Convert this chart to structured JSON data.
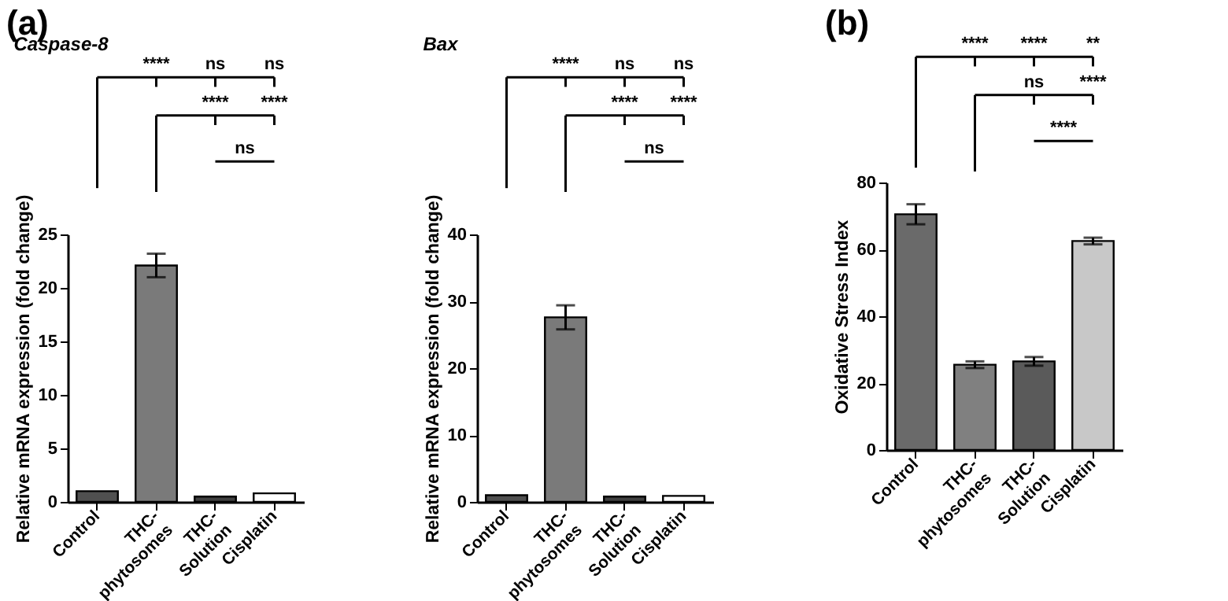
{
  "chart_data": [
    {
      "type": "bar",
      "title": "Caspase-8",
      "ylabel": "Relative mRNA expression (fold change)",
      "categories": [
        "Control",
        "THC-phytosomes",
        "THC-Solution",
        "Cisplatin"
      ],
      "series": [
        {
          "type": "bar",
          "colors": [
            "#505050",
            "#7a7a7a",
            "#404040",
            "#ffffff"
          ],
          "values": [
            1.0,
            22.1,
            0.5,
            0.8
          ],
          "errors": [
            null,
            1.1,
            null,
            null
          ]
        }
      ],
      "ylim": [
        0,
        25
      ],
      "yticks": [
        0,
        5,
        10,
        15,
        20,
        25
      ],
      "annotations": [
        "(a)",
        "****",
        "ns",
        "ns",
        "****",
        "****",
        "ns"
      ]
    },
    {
      "type": "bar",
      "title": "Bax",
      "ylabel": "Relative mRNA expression (fold change)",
      "categories": [
        "Control",
        "THC-phytosomes",
        "THC-Solution",
        "Cisplatin"
      ],
      "series": [
        {
          "type": "bar",
          "colors": [
            "#505050",
            "#7a7a7a",
            "#404040",
            "#ffffff"
          ],
          "values": [
            1.0,
            27.6,
            0.8,
            0.9
          ],
          "errors": [
            null,
            1.8,
            null,
            null
          ]
        }
      ],
      "ylim": [
        0,
        40
      ],
      "yticks": [
        0,
        10,
        20,
        30,
        40
      ],
      "annotations": [
        "****",
        "ns",
        "ns",
        "****",
        "****",
        "ns"
      ]
    },
    {
      "type": "bar",
      "ylabel": "Oxidative Stress Index",
      "categories": [
        "Control",
        "THC-phytosomes",
        "THC-Solution",
        "Cisplatin"
      ],
      "series": [
        {
          "type": "bar",
          "colors": [
            "#6a6a6a",
            "#808080",
            "#5a5a5a",
            "#c8c8c8"
          ],
          "values": [
            70.5,
            25.5,
            26.5,
            62.5
          ],
          "errors": [
            3,
            1,
            1.3,
            1
          ]
        }
      ],
      "ylim": [
        0,
        80
      ],
      "yticks": [
        0,
        20,
        40,
        60,
        80
      ],
      "annotations": [
        "(b)",
        "****",
        "****",
        "**",
        "ns",
        "****",
        "****"
      ]
    }
  ]
}
